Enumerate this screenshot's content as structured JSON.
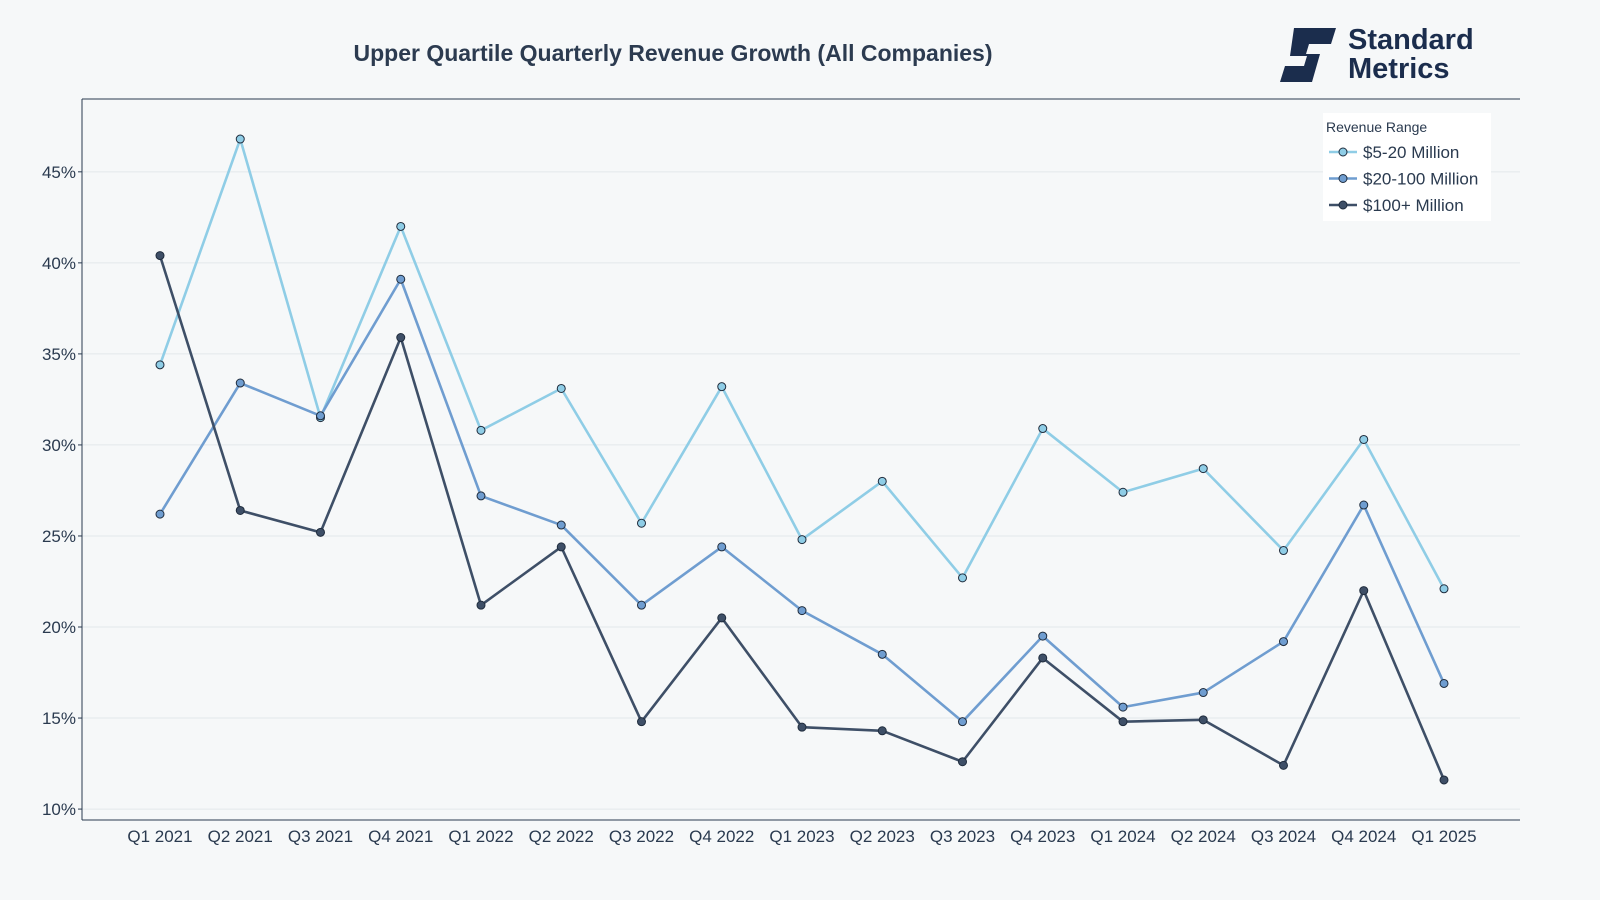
{
  "chart_data": {
    "type": "line",
    "title": "Upper Quartile Quarterly Revenue Growth (All Companies)",
    "xlabel": "",
    "ylabel": "",
    "categories": [
      "Q1 2021",
      "Q2 2021",
      "Q3 2021",
      "Q4 2021",
      "Q1 2022",
      "Q2 2022",
      "Q3 2022",
      "Q4 2022",
      "Q1 2023",
      "Q2 2023",
      "Q3 2023",
      "Q4 2023",
      "Q1 2024",
      "Q2 2024",
      "Q3 2024",
      "Q4 2024",
      "Q1 2025"
    ],
    "ylim": [
      9.4,
      49
    ],
    "yticks": [
      10,
      15,
      20,
      25,
      30,
      35,
      40,
      45
    ],
    "ytick_labels": [
      "10%",
      "15%",
      "20%",
      "25%",
      "30%",
      "35%",
      "40%",
      "45%"
    ],
    "y_unit": "%",
    "grid": true,
    "legend": {
      "title": "Revenue Range",
      "position": "top-right"
    },
    "series": [
      {
        "name": "$5-20 Million",
        "color": "#8fcde6",
        "values": [
          34.4,
          46.8,
          31.5,
          42.0,
          30.8,
          33.1,
          25.7,
          33.2,
          24.8,
          28.0,
          22.7,
          30.9,
          27.4,
          28.7,
          24.2,
          30.3,
          22.1
        ]
      },
      {
        "name": "$20-100 Million",
        "color": "#6f9dd0",
        "values": [
          26.2,
          33.4,
          31.6,
          39.1,
          27.2,
          25.6,
          21.2,
          24.4,
          20.9,
          18.5,
          14.8,
          19.5,
          15.6,
          16.4,
          19.2,
          26.7,
          16.9
        ]
      },
      {
        "name": "$100+ Million",
        "color": "#3e4f67",
        "values": [
          40.4,
          26.4,
          25.2,
          35.9,
          21.2,
          24.4,
          14.8,
          20.5,
          14.5,
          14.3,
          12.6,
          18.3,
          14.8,
          14.9,
          12.4,
          22.0,
          11.6
        ]
      }
    ]
  },
  "brand": {
    "line1": "Standard",
    "line2": "Metrics",
    "color": "#1b2d4d",
    "logo_icon": "standard-metrics-logo-icon"
  }
}
